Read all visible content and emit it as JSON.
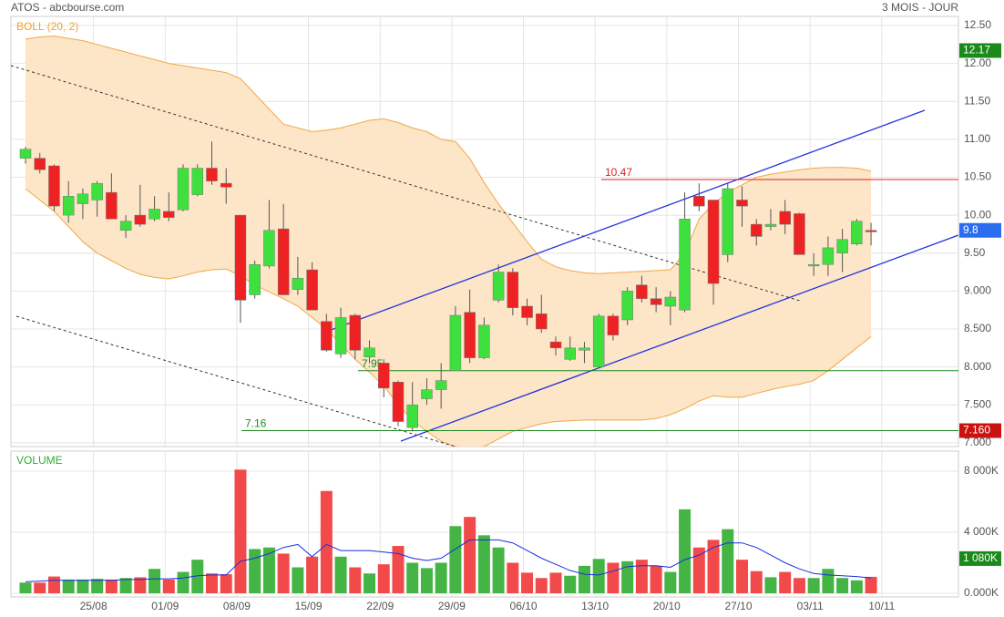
{
  "header": {
    "title": "ATOS - abcbourse.com",
    "period": "3 MOIS - JOUR"
  },
  "chart_data": [
    {
      "type": "candlestick",
      "legend_label": "BOLL (20, 2)",
      "categories": [
        null,
        null,
        null,
        null,
        null,
        "25/08",
        null,
        null,
        null,
        null,
        "01/09",
        null,
        null,
        null,
        null,
        "08/09",
        null,
        null,
        null,
        null,
        "15/09",
        null,
        null,
        null,
        null,
        "22/09",
        null,
        null,
        null,
        null,
        "29/09",
        null,
        null,
        null,
        null,
        "06/10",
        null,
        null,
        null,
        null,
        "13/10",
        null,
        null,
        null,
        null,
        "20/10",
        null,
        null,
        null,
        null,
        "27/10",
        null,
        null,
        null,
        null,
        "03/11",
        null,
        null,
        null,
        null,
        "10/11"
      ],
      "open": [
        10.75,
        10.75,
        10.65,
        10.0,
        10.15,
        10.2,
        10.3,
        9.8,
        10.0,
        9.95,
        10.05,
        10.07,
        10.27,
        10.62,
        10.42,
        10.0,
        8.95,
        9.33,
        9.82,
        9.02,
        9.28,
        8.6,
        8.17,
        8.68,
        8.13,
        8.05,
        7.8,
        7.2,
        7.58,
        7.7,
        7.95,
        8.72,
        8.12,
        8.88,
        9.25,
        8.8,
        8.7,
        8.33,
        8.1,
        8.22,
        8.0,
        8.67,
        8.62,
        9.08,
        8.9,
        8.8,
        8.75,
        10.25,
        10.2,
        9.48,
        10.2,
        9.88,
        9.85,
        10.05,
        10.02,
        9.33,
        9.35,
        9.5,
        9.62,
        9.8,
        null
      ],
      "high": [
        10.9,
        10.82,
        10.67,
        10.45,
        10.35,
        10.45,
        10.55,
        10.0,
        10.4,
        10.25,
        10.3,
        10.67,
        10.67,
        10.97,
        10.62,
        10.0,
        9.4,
        10.2,
        10.15,
        9.45,
        9.38,
        8.7,
        8.78,
        8.7,
        8.35,
        8.1,
        7.82,
        7.8,
        7.85,
        8.05,
        8.8,
        9.02,
        8.65,
        9.35,
        9.3,
        8.9,
        8.95,
        8.4,
        8.4,
        8.33,
        8.7,
        8.7,
        9.05,
        9.2,
        9.05,
        9.0,
        10.3,
        10.42,
        10.2,
        10.42,
        10.38,
        9.95,
        10.08,
        10.2,
        10.03,
        9.5,
        9.72,
        9.82,
        9.95,
        9.9,
        null
      ],
      "low": [
        10.68,
        10.55,
        10.05,
        9.9,
        9.95,
        9.98,
        9.95,
        9.7,
        9.85,
        9.92,
        9.92,
        10.05,
        10.25,
        10.4,
        10.15,
        8.58,
        8.9,
        9.3,
        8.95,
        8.95,
        8.75,
        8.2,
        8.12,
        8.1,
        8.05,
        7.6,
        7.22,
        7.15,
        7.5,
        7.45,
        7.95,
        8.05,
        8.1,
        8.85,
        8.68,
        8.55,
        8.45,
        8.15,
        8.08,
        8.05,
        7.98,
        8.35,
        8.55,
        8.85,
        8.72,
        8.55,
        8.72,
        10.05,
        8.82,
        9.38,
        9.85,
        9.6,
        9.8,
        9.75,
        9.48,
        9.2,
        9.2,
        9.25,
        9.6,
        9.6,
        null
      ],
      "close": [
        10.87,
        10.6,
        10.12,
        10.25,
        10.28,
        10.42,
        9.95,
        9.92,
        9.88,
        10.08,
        9.97,
        10.62,
        10.62,
        10.45,
        10.37,
        8.88,
        9.35,
        9.8,
        8.95,
        9.17,
        8.75,
        8.22,
        8.65,
        8.22,
        8.25,
        7.72,
        7.28,
        7.5,
        7.7,
        7.82,
        8.68,
        8.12,
        8.55,
        9.25,
        8.78,
        8.65,
        8.5,
        8.25,
        8.25,
        8.25,
        8.67,
        8.42,
        9.0,
        8.9,
        8.82,
        8.92,
        9.95,
        10.12,
        9.1,
        10.35,
        10.12,
        9.72,
        9.88,
        9.88,
        9.48,
        9.35,
        9.57,
        9.68,
        9.92,
        9.78,
        null
      ],
      "up_color": "#3ee03e",
      "down_color": "#ee2222",
      "bands": {
        "color": "#f0a848",
        "fill": "#fde5c8",
        "upper": [
          12.32,
          12.35,
          12.36,
          12.33,
          12.3,
          12.25,
          12.2,
          12.15,
          12.1,
          12.05,
          12.0,
          11.97,
          11.94,
          11.91,
          11.88,
          11.8,
          11.6,
          11.4,
          11.2,
          11.15,
          11.1,
          11.12,
          11.15,
          11.2,
          11.25,
          11.27,
          11.22,
          11.15,
          11.1,
          11.0,
          10.97,
          10.75,
          10.43,
          10.15,
          9.9,
          9.65,
          9.42,
          9.32,
          9.27,
          9.24,
          9.23,
          9.24,
          9.25,
          9.26,
          9.27,
          9.28,
          9.5,
          9.95,
          10.15,
          10.3,
          10.4,
          10.5,
          10.54,
          10.57,
          10.6,
          10.62,
          10.63,
          10.63,
          10.62,
          10.58,
          null
        ],
        "lower": [
          10.35,
          10.2,
          10.05,
          9.85,
          9.65,
          9.5,
          9.4,
          9.3,
          9.22,
          9.18,
          9.16,
          9.2,
          9.25,
          9.28,
          9.29,
          9.2,
          9.08,
          8.99,
          8.9,
          8.8,
          8.65,
          8.5,
          8.3,
          8.1,
          7.93,
          7.75,
          7.5,
          7.3,
          7.15,
          7.02,
          6.95,
          6.93,
          6.95,
          7.05,
          7.15,
          7.2,
          7.25,
          7.28,
          7.29,
          7.3,
          7.3,
          7.3,
          7.3,
          7.3,
          7.32,
          7.37,
          7.45,
          7.55,
          7.62,
          7.6,
          7.6,
          7.65,
          7.7,
          7.74,
          7.77,
          7.82,
          7.95,
          8.1,
          8.25,
          8.4,
          null
        ]
      },
      "hlines": [
        {
          "value": 10.47,
          "color": "#e02020"
        },
        {
          "value": 7.95,
          "color": "#1e8a1e"
        },
        {
          "value": 7.16,
          "color": "#1e8a1e"
        }
      ],
      "markers": [
        {
          "value": 12.17,
          "color": "#1a8a1a"
        },
        {
          "value": 9.8,
          "color": "#2b6cf0"
        },
        {
          "value": 7.16,
          "label": "7.160",
          "color": "#cc1111"
        }
      ],
      "ylim": [
        6.95,
        12.62
      ],
      "yticks": [
        {
          "value": 12.5,
          "label": "12.50"
        },
        {
          "value": 12,
          "label": "12.00"
        },
        {
          "value": 11.5,
          "label": "11.50"
        },
        {
          "value": 11,
          "label": "11.00"
        },
        {
          "value": 10.5,
          "label": "10.50"
        },
        {
          "value": 10,
          "label": "10.00"
        },
        {
          "value": 9.5,
          "label": "9.50"
        },
        {
          "value": 9,
          "label": "9.000"
        },
        {
          "value": 8.5,
          "label": "8.500"
        },
        {
          "value": 8,
          "label": "8.000"
        },
        {
          "value": 7.5,
          "label": "7.500"
        },
        {
          "value": 7,
          "label": "7.000"
        }
      ],
      "grid": true
    },
    {
      "type": "bar",
      "legend_label": "VOLUME",
      "values": [
        700,
        700,
        1100,
        900,
        900,
        950,
        900,
        1000,
        1050,
        1600,
        900,
        1400,
        2200,
        1300,
        1250,
        8100,
        2900,
        3000,
        2600,
        1700,
        2400,
        6700,
        2400,
        1700,
        1300,
        1900,
        3100,
        2000,
        1650,
        2000,
        4400,
        5000,
        3800,
        3000,
        2000,
        1350,
        1000,
        1350,
        1150,
        1800,
        2250,
        2000,
        2100,
        2200,
        1800,
        1400,
        5500,
        3000,
        3500,
        4200,
        2200,
        1450,
        1050,
        1400,
        1000,
        1000,
        1600,
        1000,
        850,
        1080,
        null
      ],
      "up_color": "#44b444",
      "down_color": "#f24a4a",
      "average": {
        "color": "#1a2ee0",
        "values": [
          750,
          800,
          850,
          850,
          850,
          850,
          850,
          900,
          900,
          950,
          950,
          1000,
          1150,
          1200,
          1200,
          2100,
          2300,
          2600,
          3000,
          3200,
          2400,
          3200,
          2800,
          2800,
          2800,
          2700,
          2600,
          2300,
          2150,
          2300,
          2900,
          3500,
          3500,
          3500,
          3300,
          2800,
          2300,
          1900,
          1500,
          1250,
          1200,
          1450,
          1750,
          1800,
          1800,
          1700,
          2200,
          2500,
          3000,
          3300,
          3300,
          3000,
          2500,
          2000,
          1600,
          1300,
          1200,
          1150,
          1100,
          1000,
          null
        ]
      },
      "markers": [
        {
          "value": 1080,
          "label": "1 080K",
          "color": "#1a8a1a"
        }
      ],
      "ylim": [
        0,
        9310
      ],
      "yticks": [
        {
          "value": 8000,
          "label": "8 000K"
        },
        {
          "value": 4000,
          "label": "4 000K"
        },
        {
          "value": 0,
          "label": "0.000K"
        }
      ],
      "grid": true
    }
  ]
}
